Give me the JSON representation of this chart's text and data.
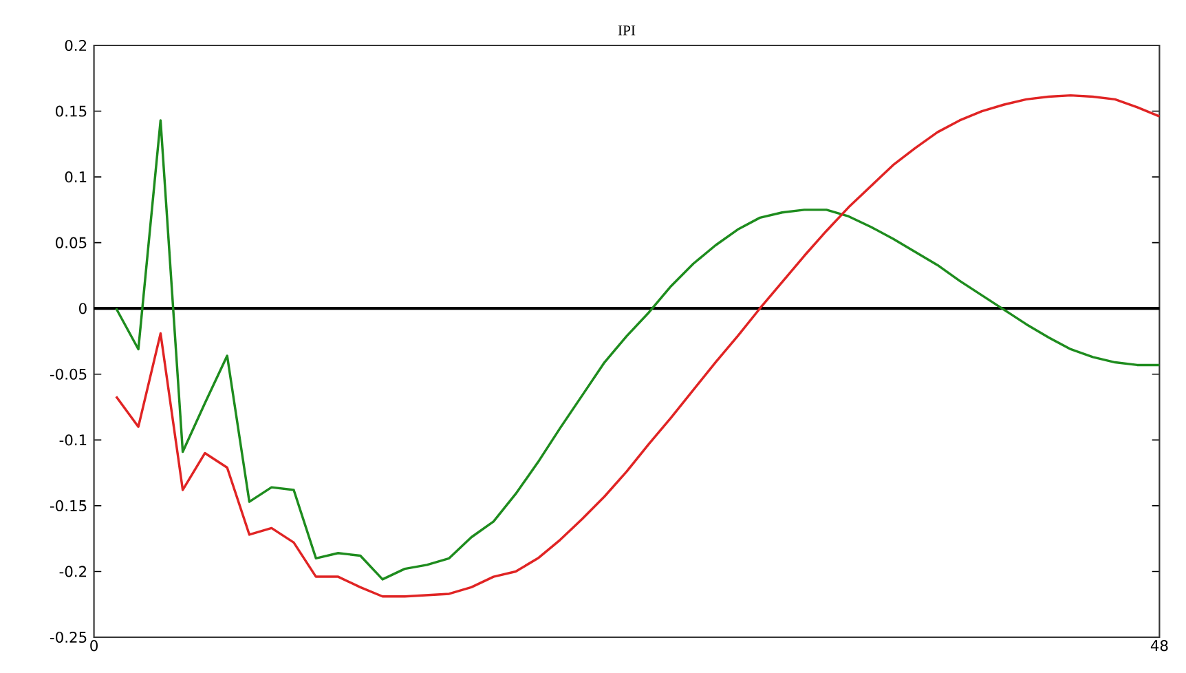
{
  "chart_data": {
    "type": "line",
    "title": "IPI",
    "x": [
      1,
      2,
      3,
      4,
      5,
      6,
      7,
      8,
      9,
      10,
      11,
      12,
      13,
      14,
      15,
      16,
      17,
      18,
      19,
      20,
      21,
      22,
      23,
      24,
      25,
      26,
      27,
      28,
      29,
      30,
      31,
      32,
      33,
      34,
      35,
      36,
      37,
      38,
      39,
      40,
      41,
      42,
      43,
      44,
      45,
      46,
      47,
      48
    ],
    "series": [
      {
        "color": "#1e8c1e",
        "values": [
          0,
          -0.031,
          0.143,
          -0.109,
          -0.072,
          -0.036,
          -0.147,
          -0.136,
          -0.138,
          -0.19,
          -0.186,
          -0.188,
          -0.206,
          -0.198,
          -0.195,
          -0.19,
          -0.174,
          -0.162,
          -0.141,
          -0.117,
          -0.091,
          -0.066,
          -0.041,
          -0.021,
          -0.003,
          0.017,
          0.034,
          0.048,
          0.06,
          0.069,
          0.073,
          0.075,
          0.075,
          0.07,
          0.062,
          0.053,
          0.043,
          0.033,
          0.021,
          0.01,
          -0.001,
          -0.012,
          -0.022,
          -0.031,
          -0.037,
          -0.041,
          -0.043,
          -0.043
        ]
      },
      {
        "color": "#e02424",
        "values": [
          -0.067,
          -0.09,
          -0.019,
          -0.138,
          -0.11,
          -0.121,
          -0.172,
          -0.167,
          -0.178,
          -0.204,
          -0.204,
          -0.212,
          -0.219,
          -0.219,
          -0.218,
          -0.217,
          -0.212,
          -0.204,
          -0.2,
          -0.19,
          -0.176,
          -0.16,
          -0.143,
          -0.124,
          -0.103,
          -0.083,
          -0.062,
          -0.041,
          -0.021,
          0,
          0.02,
          0.04,
          0.059,
          0.077,
          0.093,
          0.109,
          0.122,
          0.134,
          0.143,
          0.15,
          0.155,
          0.159,
          0.161,
          0.162,
          0.161,
          0.159,
          0.153,
          0.146
        ]
      }
    ],
    "xlim": [
      0,
      48
    ],
    "xticks": [
      0,
      48
    ],
    "ylim": [
      -0.25,
      0.2
    ],
    "yticks": [
      -0.25,
      -0.2,
      -0.15,
      -0.1,
      -0.05,
      0,
      0.05,
      0.1,
      0.15,
      0.2
    ],
    "line_style": "solid",
    "ref_lines": [
      {
        "axis": "y",
        "value": 0,
        "color": "#000000"
      }
    ]
  }
}
